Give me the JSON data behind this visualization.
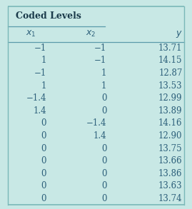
{
  "title": "Coded Levels",
  "col_headers": [
    "$x_1$",
    "$x_2$",
    "$y$"
  ],
  "rows": [
    [
      "−1",
      "−1",
      "13.71"
    ],
    [
      "1",
      "−1",
      "14.15"
    ],
    [
      "−1",
      "1",
      "12.87"
    ],
    [
      "1",
      "1",
      "13.53"
    ],
    [
      "−1.4",
      "0",
      "12.99"
    ],
    [
      "1.4",
      "0",
      "13.89"
    ],
    [
      "0",
      "−1.4",
      "14.16"
    ],
    [
      "0",
      "1.4",
      "12.90"
    ],
    [
      "0",
      "0",
      "13.75"
    ],
    [
      "0",
      "0",
      "13.66"
    ],
    [
      "0",
      "0",
      "13.86"
    ],
    [
      "0",
      "0",
      "13.63"
    ],
    [
      "0",
      "0",
      "13.74"
    ]
  ],
  "bg_color": "#c8e8e5",
  "header_text_color": "#2c5f7a",
  "data_text_color": "#2c5f7a",
  "title_color": "#1a3a4a",
  "border_color": "#7ab8b8",
  "divider_color": "#5a9aaa",
  "font_size": 8.5,
  "title_font_size": 9.0,
  "col_header_font_size": 9.0
}
